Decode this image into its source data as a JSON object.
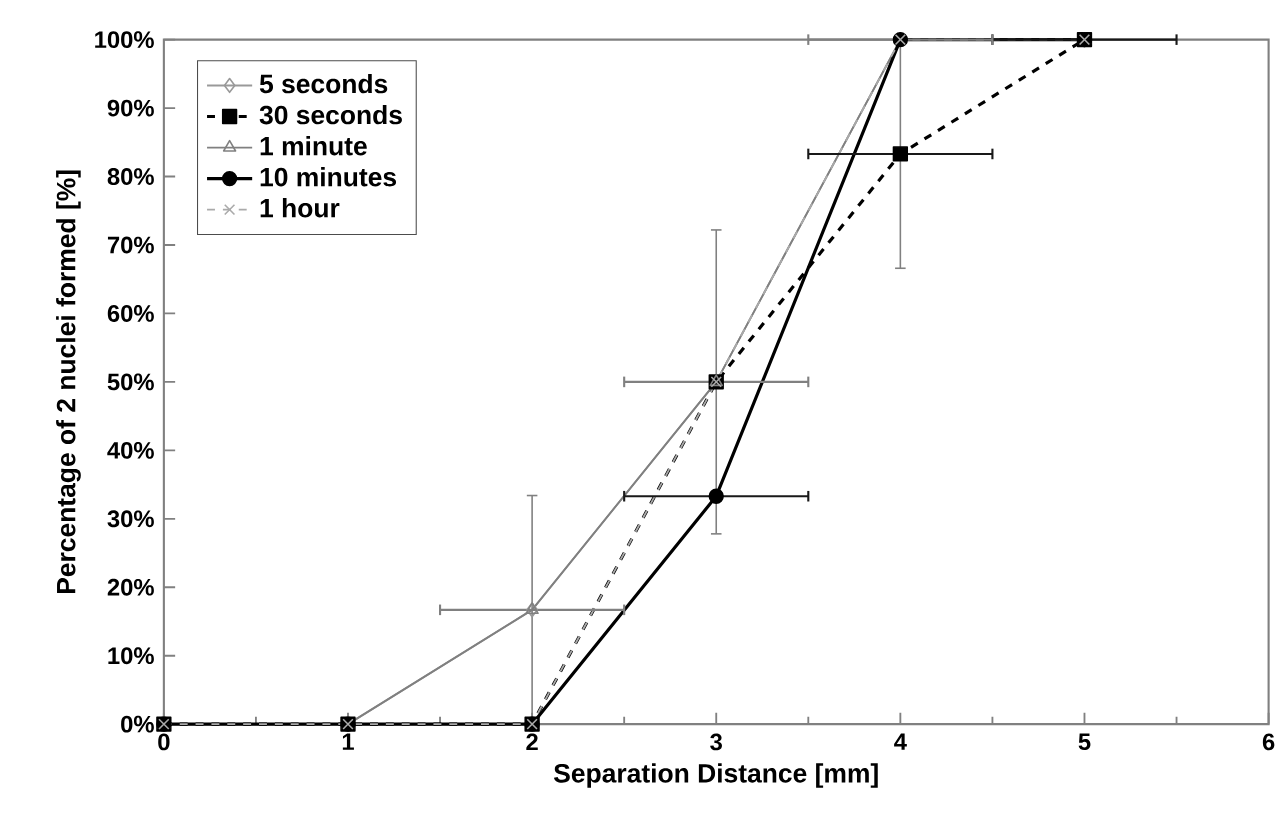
{
  "chart_data": {
    "type": "line",
    "xlabel": "Separation Distance [mm]",
    "ylabel": "Percentage of 2 nuclei formed [%]",
    "x": [
      0,
      1,
      2,
      3,
      4,
      5
    ],
    "xlim": [
      0,
      6
    ],
    "xticks": [
      0,
      1,
      2,
      3,
      4,
      5,
      6
    ],
    "ylim": [
      0,
      100
    ],
    "yticks": [
      {
        "value": 0,
        "label": "0%"
      },
      {
        "value": 10,
        "label": "10%"
      },
      {
        "value": 20,
        "label": "20%"
      },
      {
        "value": 30,
        "label": "30%"
      },
      {
        "value": 40,
        "label": "40%"
      },
      {
        "value": 50,
        "label": "50%"
      },
      {
        "value": 60,
        "label": "60%"
      },
      {
        "value": 70,
        "label": "70%"
      },
      {
        "value": 80,
        "label": "80%"
      },
      {
        "value": 90,
        "label": "90%"
      },
      {
        "value": 100,
        "label": "100%"
      }
    ],
    "legend": "top left",
    "series": [
      {
        "name": "5 seconds",
        "color": "#999999",
        "marker": "diamond",
        "line_style": "solid",
        "values": [
          0,
          0,
          16.7,
          50,
          100,
          100
        ]
      },
      {
        "name": "30 seconds",
        "color": "#000000",
        "marker": "square",
        "line_style": "dashed",
        "values": [
          0,
          0,
          0,
          50,
          83.3,
          100
        ],
        "errors": [
          null,
          null,
          null,
          null,
          16.7,
          null
        ],
        "xerrors": [
          null,
          null,
          null,
          null,
          0.5,
          0.5
        ]
      },
      {
        "name": "1 minute",
        "color": "#808080",
        "marker": "triangle",
        "line_style": "solid",
        "values": [
          0,
          0,
          16.7,
          50,
          100,
          100
        ],
        "errors": [
          null,
          null,
          16.7,
          22.2,
          null,
          null
        ],
        "xerrors": [
          null,
          null,
          0.5,
          0.5,
          0.5,
          null
        ]
      },
      {
        "name": "10 minutes",
        "color": "#000000",
        "marker": "circle",
        "line_style": "solid",
        "values": [
          0,
          0,
          0,
          33.3,
          100,
          100
        ],
        "xerrors": [
          null,
          null,
          null,
          0.5,
          null,
          null
        ]
      },
      {
        "name": "1 hour",
        "color": "#aaaaaa",
        "marker": "cross",
        "line_style": "dashed",
        "values": [
          0,
          0,
          0,
          50,
          100,
          100
        ]
      }
    ]
  }
}
